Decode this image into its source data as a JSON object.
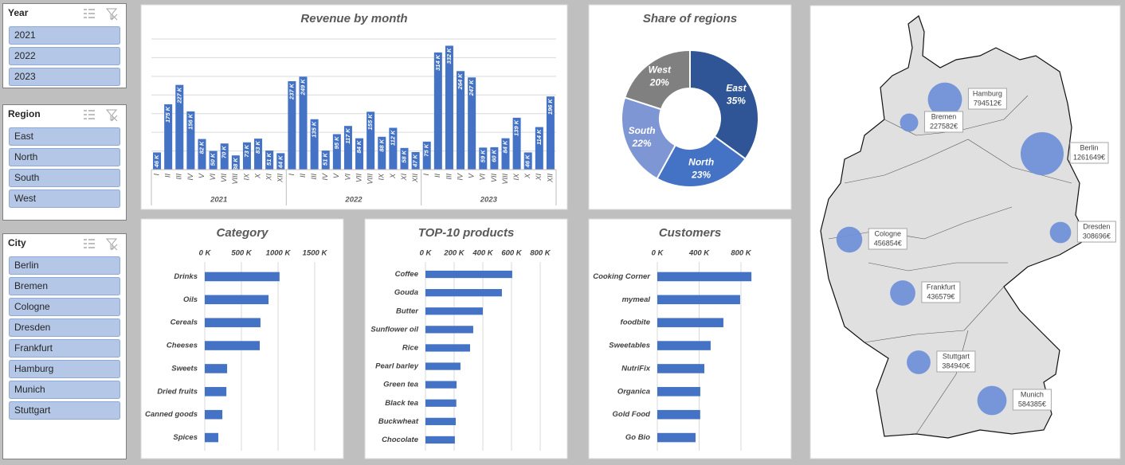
{
  "slicers": [
    {
      "title": "Year",
      "items": [
        "2021",
        "2022",
        "2023"
      ]
    },
    {
      "title": "Region",
      "items": [
        "East",
        "North",
        "South",
        "West"
      ]
    },
    {
      "title": "City",
      "items": [
        "Berlin",
        "Bremen",
        "Cologne",
        "Dresden",
        "Frankfurt",
        "Hamburg",
        "Munich",
        "Stuttgart"
      ]
    }
  ],
  "chart_data": [
    {
      "type": "column",
      "title": "Revenue by month",
      "color": "#4472c4",
      "categories": [
        "I",
        "II",
        "III",
        "IV",
        "V",
        "VI",
        "VII",
        "VIII",
        "IX",
        "X",
        "XI",
        "XII",
        "I",
        "II",
        "III",
        "IV",
        "V",
        "VI",
        "VII",
        "VIII",
        "IX",
        "X",
        "XI",
        "XII",
        "I",
        "II",
        "III",
        "IV",
        "V",
        "VI",
        "VII",
        "VIII",
        "IX",
        "X",
        "XI",
        "XII"
      ],
      "groups": [
        "2021",
        "2022",
        "2023"
      ],
      "values": [
        46,
        175,
        227,
        156,
        82,
        50,
        70,
        38,
        73,
        83,
        51,
        44,
        237,
        249,
        135,
        51,
        95,
        117,
        84,
        155,
        88,
        112,
        58,
        47,
        75,
        314,
        332,
        264,
        247,
        59,
        60,
        84,
        139,
        46,
        114,
        196
      ],
      "value_labels": [
        "46 K",
        "175 K",
        "227 K",
        "156 K",
        "82 K",
        "50 K",
        "70 K",
        "38 K",
        "73 K",
        "83 K",
        "51 K",
        "44 K",
        "237 K",
        "249 K",
        "135 K",
        "51 K",
        "95 K",
        "117 K",
        "84 K",
        "155 K",
        "88 K",
        "112 K",
        "58 K",
        "47 K",
        "75 K",
        "314 K",
        "332 K",
        "264 K",
        "247 K",
        "59 K",
        "60 K",
        "84 K",
        "139 K",
        "46 K",
        "114 K",
        "196 K"
      ],
      "ylim": [
        0,
        350
      ],
      "yticks": [
        0,
        50,
        100,
        150,
        200,
        250,
        300,
        350
      ],
      "grid": true
    },
    {
      "type": "donut",
      "title": "Share of regions",
      "categories": [
        "East",
        "North",
        "South",
        "West"
      ],
      "values": [
        35,
        23,
        22,
        20
      ],
      "value_labels": [
        "35%",
        "23%",
        "22%",
        "20%"
      ],
      "colors": [
        "#2f5597",
        "#4472c4",
        "#7f96d4",
        "#808080"
      ]
    },
    {
      "type": "bar",
      "title": "Category",
      "color": "#4472c4",
      "categories": [
        "Drinks",
        "Oils",
        "Cereals",
        "Cheeses",
        "Sweets",
        "Dried fruits",
        "Canned goods",
        "Spices"
      ],
      "values": [
        1020,
        870,
        760,
        750,
        305,
        295,
        240,
        185
      ],
      "xlim": [
        0,
        1750
      ],
      "xticks": [
        {
          "value": 0,
          "label": "0 K"
        },
        {
          "value": 500,
          "label": "500 K"
        },
        {
          "value": 1000,
          "label": "1000 K"
        },
        {
          "value": 1500,
          "label": "1500 K"
        }
      ],
      "grid": true
    },
    {
      "type": "bar",
      "title": "TOP-10 products",
      "color": "#4472c4",
      "categories": [
        "Coffee",
        "Gouda",
        "Butter",
        "Sunflower oil",
        "Rice",
        "Pearl barley",
        "Green tea",
        "Black tea",
        "Buckwheat",
        "Chocolate"
      ],
      "values": [
        605,
        533,
        400,
        333,
        311,
        244,
        217,
        215,
        211,
        205
      ],
      "xlim": [
        0,
        900
      ],
      "xticks": [
        {
          "value": 0,
          "label": "0 K"
        },
        {
          "value": 200,
          "label": "200 K"
        },
        {
          "value": 400,
          "label": "400 K"
        },
        {
          "value": 600,
          "label": "600 K"
        },
        {
          "value": 800,
          "label": "800 K"
        }
      ],
      "grid": true
    },
    {
      "type": "bar",
      "title": "Customers",
      "color": "#4472c4",
      "categories": [
        "Cooking Corner",
        "mymeal",
        "foodbite",
        "Sweetables",
        "NutriFix",
        "Organica",
        "Gold Food",
        "Go Bio"
      ],
      "values": [
        900,
        792,
        632,
        510,
        450,
        411,
        410,
        366
      ],
      "xlim": [
        0,
        1200
      ],
      "xticks": [
        {
          "value": 0,
          "label": "0 K"
        },
        {
          "value": 400,
          "label": "400 K"
        },
        {
          "value": 800,
          "label": "800 K"
        }
      ],
      "grid": true
    },
    {
      "type": "bubble_map",
      "color": "#7091d8",
      "categories": [
        "Hamburg",
        "Bremen",
        "Berlin",
        "Dresden",
        "Cologne",
        "Frankfurt",
        "Stuttgart",
        "Munich"
      ],
      "values": [
        794512,
        227582,
        1261649,
        308696,
        456854,
        436579,
        384940,
        584385
      ],
      "value_labels": [
        "794512€",
        "227582€",
        "1261649€",
        "308696€",
        "456854€",
        "436579€",
        "384940€",
        "584385€"
      ]
    }
  ]
}
